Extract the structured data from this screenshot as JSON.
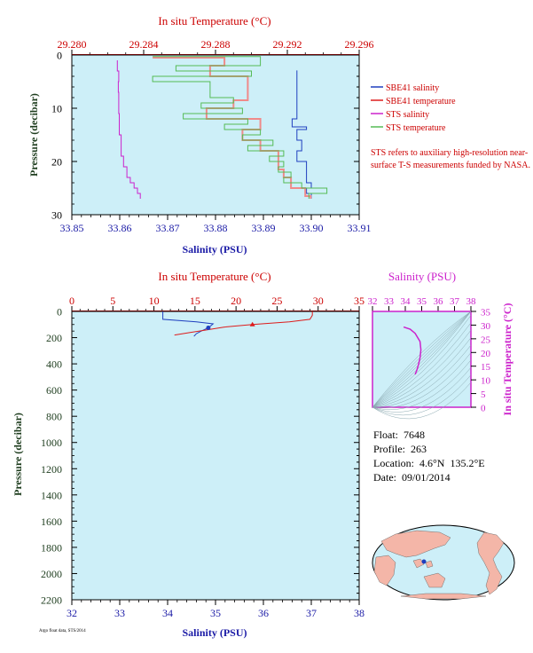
{
  "colors": {
    "background": "#cdeff8",
    "salinity_axis": "#1a1aa6",
    "temperature_axis": "#cc0000",
    "pressure_axis": "#1e3d1e",
    "sbe_salinity": "#1f3fbf",
    "sbe_temperature": "#dd1c1c",
    "sts_salinity": "#cc22cc",
    "sts_temperature": "#55bb55",
    "sts_temperature_pink": "#f08a8a",
    "inset_accent": "#cc22cc",
    "map_land": "#f4b6a8",
    "map_ocean": "#cdeff8"
  },
  "top_panel": {
    "top_axis_label": "In situ Temperature (°C)",
    "bottom_axis_label": "Salinity (PSU)",
    "left_axis_label": "Pressure (decibar)",
    "temp_ticks": [
      "29.280",
      "29.284",
      "29.288",
      "29.292",
      "29.296"
    ],
    "sal_ticks": [
      "33.85",
      "33.86",
      "33.87",
      "33.88",
      "33.89",
      "33.90",
      "33.91"
    ],
    "pres_ticks": [
      "0",
      "10",
      "20",
      "30"
    ],
    "legend": [
      {
        "label": "SBE41 salinity",
        "color_key": "sbe_salinity"
      },
      {
        "label": "SBE41 temperature",
        "color_key": "sbe_temperature"
      },
      {
        "label": "STS salinity",
        "color_key": "sts_salinity"
      },
      {
        "label": "STS temperature",
        "color_key": "sts_temperature"
      }
    ],
    "note": "STS refers to auxiliary high-resolution near-surface T-S measurements funded by NASA."
  },
  "bottom_panel": {
    "top_axis_label": "In situ Temperature (°C)",
    "bottom_axis_label": "Salinity (PSU)",
    "left_axis_label": "Pressure (decibar)",
    "temp_ticks": [
      "0",
      "5",
      "10",
      "15",
      "20",
      "25",
      "30",
      "35"
    ],
    "sal_ticks": [
      "32",
      "33",
      "34",
      "35",
      "36",
      "37",
      "38"
    ],
    "pres_ticks": [
      "0",
      "200",
      "400",
      "600",
      "800",
      "1000",
      "1200",
      "1400",
      "1600",
      "1800",
      "2000",
      "2200"
    ]
  },
  "ts_inset": {
    "top_axis_label": "Salinity (PSU)",
    "right_axis_label": "In situ Temperature (°C)",
    "sal_ticks": [
      "32",
      "33",
      "34",
      "35",
      "36",
      "37",
      "38"
    ],
    "temp_ticks": [
      "35",
      "30",
      "25",
      "20",
      "15",
      "10",
      "5",
      "0"
    ]
  },
  "float_info": {
    "float": "Float:  7648",
    "profile": "Profile:  263",
    "location": "Location:  4.6°N  135.2°E",
    "date": "Date:  09/01/2014"
  },
  "footer_tiny": "Argo float data, STS/2014",
  "chart_data": [
    {
      "type": "line",
      "title": "",
      "xlabel": "Salinity (PSU)",
      "x2label": "In situ Temperature (°C)",
      "ylabel": "Pressure (decibar)",
      "xlim": [
        33.85,
        33.91
      ],
      "x2lim": [
        29.28,
        29.296
      ],
      "ylim": [
        30,
        0
      ],
      "series": [
        {
          "name": "SBE41 salinity",
          "axis": "salinity",
          "pressure": [
            2.9,
            5,
            8,
            10,
            12,
            13.5,
            14,
            16,
            18,
            20,
            21,
            24,
            25,
            26,
            27
          ],
          "values": [
            33.897,
            33.897,
            33.897,
            33.897,
            33.897,
            33.896,
            33.899,
            33.897,
            33.898,
            33.897,
            33.899,
            33.899,
            33.9,
            33.899,
            33.9
          ]
        },
        {
          "name": "SBE41 temperature",
          "axis": "temperature",
          "pressure": [
            0.5,
            2,
            4,
            5.5,
            7,
            8.5,
            10,
            12,
            14,
            16,
            18,
            20,
            21.5,
            23,
            25,
            26.5,
            27
          ],
          "values": [
            29.2845,
            29.2885,
            29.2877,
            29.2898,
            29.2898,
            29.2898,
            29.289,
            29.2875,
            29.2905,
            29.2895,
            29.2905,
            29.2915,
            29.2915,
            29.2918,
            29.2922,
            29.293,
            29.2933
          ]
        },
        {
          "name": "STS salinity",
          "axis": "salinity",
          "pressure": [
            1,
            3,
            5,
            7,
            9,
            11,
            13,
            15,
            17,
            19,
            21,
            23,
            24,
            25,
            26,
            27
          ],
          "values": [
            33.8595,
            33.8595,
            33.8598,
            33.8597,
            33.8598,
            33.8598,
            33.8599,
            33.8599,
            33.8603,
            33.8603,
            33.8608,
            33.8615,
            33.8622,
            33.863,
            33.8637,
            33.8643
          ]
        },
        {
          "name": "STS temperature",
          "axis": "temperature",
          "pressure": [
            0.3,
            2,
            3,
            4,
            5,
            6,
            8,
            9,
            10,
            11,
            12,
            13,
            14,
            15,
            16,
            17,
            18,
            19,
            20,
            21,
            22,
            23,
            24,
            25,
            26,
            27
          ],
          "values": [
            29.2845,
            29.2905,
            29.2858,
            29.29,
            29.2845,
            29.2877,
            29.2877,
            29.289,
            29.2872,
            29.2895,
            29.2862,
            29.2898,
            29.2885,
            29.2905,
            29.2895,
            29.2912,
            29.2898,
            29.2918,
            29.291,
            29.2918,
            29.2915,
            29.2922,
            29.2918,
            29.2928,
            29.2942,
            29.2932
          ]
        }
      ]
    },
    {
      "type": "line",
      "title": "",
      "xlabel": "Salinity (PSU)",
      "x2label": "In situ Temperature (°C)",
      "ylabel": "Pressure (decibar)",
      "xlim": [
        32,
        38
      ],
      "x2lim": [
        0,
        35
      ],
      "ylim": [
        2200,
        0
      ],
      "series": [
        {
          "name": "SBE41 salinity",
          "axis": "salinity",
          "pressure": [
            0,
            60,
            80,
            95,
            110,
            125,
            150,
            170,
            190
          ],
          "values": [
            33.9,
            33.9,
            34.6,
            34.95,
            34.9,
            34.85,
            34.7,
            34.6,
            34.55
          ]
        },
        {
          "name": "SBE41 temperature",
          "axis": "temperature",
          "pressure": [
            0,
            30,
            60,
            80,
            100,
            120,
            140,
            160,
            180
          ],
          "values": [
            29.3,
            29.3,
            29.0,
            26.5,
            22.0,
            18.5,
            16.5,
            14.5,
            12.5
          ]
        }
      ]
    },
    {
      "type": "line",
      "title": "",
      "xlabel": "Salinity (PSU)",
      "ylabel": "In situ Temperature (°C)",
      "xlim": [
        32,
        38
      ],
      "ylim": [
        0,
        35
      ],
      "series": [
        {
          "name": "T-S profile",
          "x": [
            33.9,
            34.3,
            34.6,
            34.9,
            34.95,
            34.9,
            34.8,
            34.7,
            34.6
          ],
          "y": [
            29.3,
            28.5,
            27.0,
            24.0,
            21.0,
            18.0,
            15.5,
            13.5,
            12.0
          ]
        }
      ]
    }
  ]
}
